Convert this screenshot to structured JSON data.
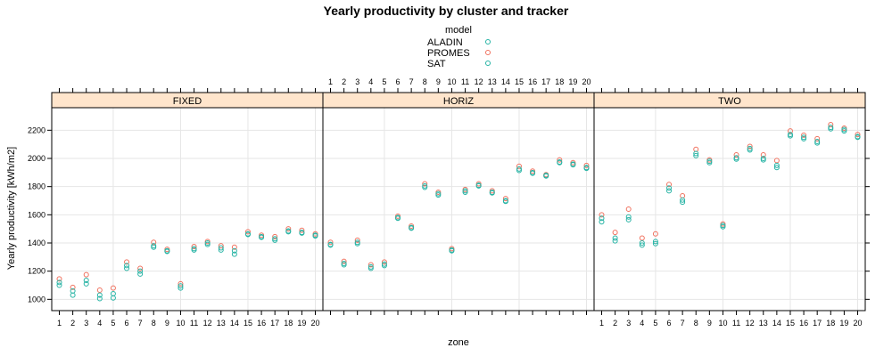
{
  "chart_data": {
    "type": "scatter",
    "title": "Yearly productivity by cluster and tracker",
    "xlabel": "zone",
    "ylabel": "Yearly productivity [kWh/m2]",
    "legend": {
      "title": "model",
      "placement": "top-center",
      "entries": [
        {
          "name": "ALADIN",
          "color": "#26b3a4"
        },
        {
          "name": "PROMES",
          "color": "#f0715e"
        },
        {
          "name": "SAT",
          "color": "#26b3a4"
        }
      ]
    },
    "x_categories": [
      "1",
      "2",
      "3",
      "4",
      "5",
      "6",
      "7",
      "8",
      "9",
      "10",
      "11",
      "12",
      "13",
      "14",
      "15",
      "16",
      "17",
      "18",
      "19",
      "20"
    ],
    "ylim": [
      920,
      2360
    ],
    "yticks": [
      1000,
      1200,
      1400,
      1600,
      1800,
      2000,
      2200
    ],
    "grid": true,
    "panels": [
      {
        "name": "FIXED",
        "series": [
          {
            "name": "ALADIN",
            "values": [
              1100,
              1030,
              1110,
              1005,
              1010,
              1220,
              1180,
              1370,
              1340,
              1080,
              1350,
              1390,
              1350,
              1320,
              1460,
              1440,
              1420,
              1480,
              1470,
              1450
            ]
          },
          {
            "name": "PROMES",
            "values": [
              1145,
              1085,
              1175,
              1065,
              1080,
              1265,
              1220,
              1405,
              1355,
              1110,
              1375,
              1410,
              1380,
              1370,
              1480,
              1455,
              1445,
              1500,
              1490,
              1465
            ]
          },
          {
            "name": "SAT",
            "values": [
              1120,
              1060,
              1135,
              1030,
              1040,
              1240,
              1200,
              1380,
              1345,
              1095,
              1360,
              1400,
              1365,
              1345,
              1465,
              1445,
              1430,
              1485,
              1475,
              1455
            ]
          }
        ]
      },
      {
        "name": "HORIZ",
        "series": [
          {
            "name": "ALADIN",
            "values": [
              1385,
              1245,
              1395,
              1220,
              1240,
              1575,
              1505,
              1795,
              1740,
              1345,
              1760,
              1805,
              1755,
              1695,
              1915,
              1895,
              1875,
              1970,
              1955,
              1930
            ]
          },
          {
            "name": "PROMES",
            "values": [
              1405,
              1270,
              1420,
              1245,
              1265,
              1590,
              1520,
              1820,
              1760,
              1360,
              1780,
              1820,
              1770,
              1715,
              1945,
              1910,
              1885,
              1990,
              1970,
              1950
            ]
          },
          {
            "name": "SAT",
            "values": [
              1390,
              1255,
              1405,
              1230,
              1250,
              1580,
              1510,
              1805,
              1750,
              1350,
              1770,
              1810,
              1760,
              1700,
              1925,
              1900,
              1880,
              1975,
              1960,
              1935
            ]
          }
        ]
      },
      {
        "name": "TWO",
        "series": [
          {
            "name": "ALADIN",
            "values": [
              1550,
              1415,
              1565,
              1385,
              1395,
              1770,
              1690,
              2020,
              1970,
              1515,
              1995,
              2060,
              1990,
              1935,
              2160,
              2140,
              2110,
              2210,
              2195,
              2150
            ]
          },
          {
            "name": "PROMES",
            "values": [
              1600,
              1475,
              1640,
              1435,
              1465,
              1815,
              1735,
              2065,
              1990,
              1535,
              2025,
              2085,
              2025,
              1985,
              2195,
              2165,
              2140,
              2240,
              2215,
              2170
            ]
          },
          {
            "name": "SAT",
            "values": [
              1575,
              1435,
              1585,
              1400,
              1410,
              1790,
              1705,
              2035,
              1980,
              1525,
              2005,
              2070,
              2000,
              1950,
              2170,
              2150,
              2120,
              2220,
              2205,
              2155
            ]
          }
        ]
      }
    ]
  }
}
